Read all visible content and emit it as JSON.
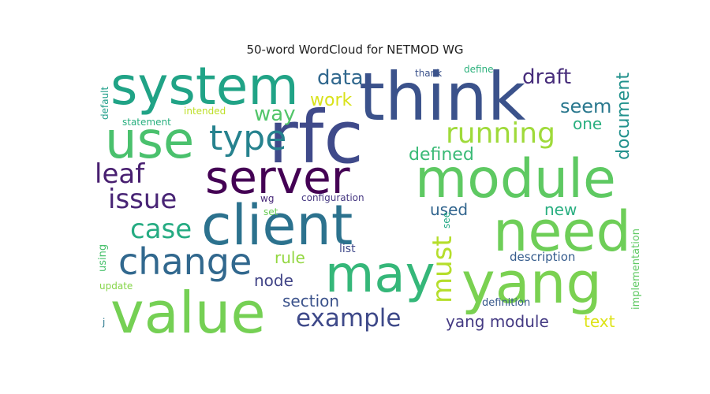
{
  "chart_data": {
    "type": "wordcloud",
    "title": "50-word WordCloud for NETMOD WG",
    "words": [
      {
        "text": "rfc",
        "color": "#3f4a8a"
      },
      {
        "text": "think",
        "color": "#3b528b"
      },
      {
        "text": "system",
        "color": "#20a386"
      },
      {
        "text": "module",
        "color": "#5ec962"
      },
      {
        "text": "use",
        "color": "#4ac16d"
      },
      {
        "text": "server",
        "color": "#440154"
      },
      {
        "text": "client",
        "color": "#2c728e"
      },
      {
        "text": "need",
        "color": "#6ece58"
      },
      {
        "text": "yang",
        "color": "#7ad151"
      },
      {
        "text": "value",
        "color": "#75d054"
      },
      {
        "text": "may",
        "color": "#35b779"
      },
      {
        "text": "change",
        "color": "#31688e"
      },
      {
        "text": "type",
        "color": "#26828e"
      },
      {
        "text": "running",
        "color": "#9fda3a"
      },
      {
        "text": "leaf",
        "color": "#481f70"
      },
      {
        "text": "issue",
        "color": "#482475"
      },
      {
        "text": "case",
        "color": "#25ab82"
      },
      {
        "text": "must",
        "color": "#b5de2b"
      },
      {
        "text": "example",
        "color": "#3e4989"
      },
      {
        "text": "data",
        "color": "#31688e"
      },
      {
        "text": "draft",
        "color": "#472d7b"
      },
      {
        "text": "way",
        "color": "#52c569"
      },
      {
        "text": "work",
        "color": "#d8e219"
      },
      {
        "text": "seem",
        "color": "#2a788e"
      },
      {
        "text": "one",
        "color": "#29af7f"
      },
      {
        "text": "defined",
        "color": "#3aba76"
      },
      {
        "text": "document",
        "color": "#21918c"
      },
      {
        "text": "used",
        "color": "#32658e"
      },
      {
        "text": "new",
        "color": "#28ae80"
      },
      {
        "text": "rule",
        "color": "#93d741"
      },
      {
        "text": "node",
        "color": "#414487"
      },
      {
        "text": "section",
        "color": "#3b528b"
      },
      {
        "text": "yang module",
        "color": "#443a83"
      },
      {
        "text": "text",
        "color": "#dde318"
      },
      {
        "text": "description",
        "color": "#365c8d"
      },
      {
        "text": "list",
        "color": "#3f4889"
      },
      {
        "text": "configuration",
        "color": "#453781"
      },
      {
        "text": "wg",
        "color": "#482878"
      },
      {
        "text": "set",
        "color": "#6ccd5a"
      },
      {
        "text": "see",
        "color": "#22a884"
      },
      {
        "text": "implementation",
        "color": "#5ec962"
      },
      {
        "text": "definition",
        "color": "#38598c"
      },
      {
        "text": "using",
        "color": "#4ac16d"
      },
      {
        "text": "update",
        "color": "#86d549"
      },
      {
        "text": "statement",
        "color": "#29af7f"
      },
      {
        "text": "intended",
        "color": "#bddf26"
      },
      {
        "text": "default",
        "color": "#1f9e89"
      },
      {
        "text": "thank",
        "color": "#3b528b"
      },
      {
        "text": "define",
        "color": "#2db27d"
      },
      {
        "text": "j",
        "color": "#2a788e"
      }
    ]
  }
}
